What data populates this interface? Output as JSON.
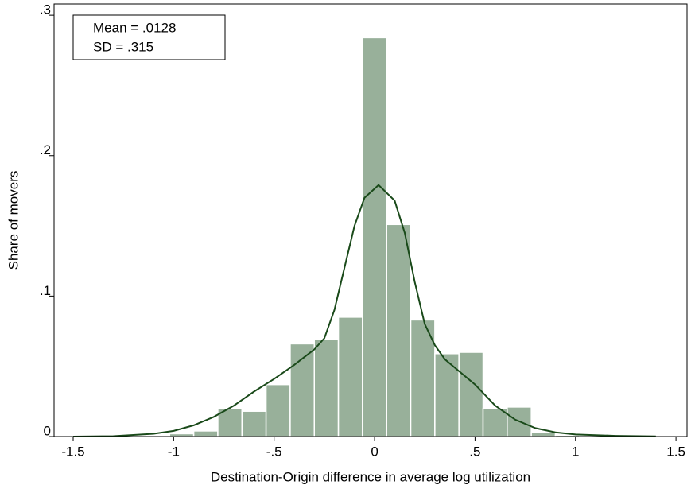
{
  "chart_data": {
    "type": "histogram",
    "x_label": "Destination-Origin difference in average log utilization",
    "y_label": "Share of movers",
    "annotations": [
      "Mean = .0128",
      "SD = .315"
    ],
    "bins": [
      -1.02,
      -0.9,
      -0.78,
      -0.66,
      -0.54,
      -0.42,
      -0.3,
      -0.18,
      -0.06,
      0.06,
      0.18,
      0.3,
      0.42,
      0.54,
      0.66,
      0.78,
      0.9,
      1.02
    ],
    "values": [
      0.002,
      0.004,
      0.02,
      0.018,
      0.037,
      0.066,
      0.069,
      0.085,
      0.284,
      0.151,
      0.083,
      0.059,
      0.06,
      0.02,
      0.021,
      0.003,
      0.001
    ],
    "color": "#98b09a",
    "density": {
      "color": "#1a4a1a",
      "x": [
        -1.5,
        -1.3,
        -1.1,
        -1.0,
        -0.9,
        -0.8,
        -0.7,
        -0.6,
        -0.5,
        -0.4,
        -0.3,
        -0.25,
        -0.2,
        -0.15,
        -0.1,
        -0.05,
        0.02,
        0.1,
        0.15,
        0.2,
        0.25,
        0.3,
        0.35,
        0.4,
        0.5,
        0.6,
        0.7,
        0.8,
        0.9,
        1.0,
        1.2,
        1.4
      ],
      "values": [
        0,
        0.0003,
        0.002,
        0.004,
        0.008,
        0.014,
        0.022,
        0.032,
        0.041,
        0.051,
        0.062,
        0.07,
        0.09,
        0.12,
        0.15,
        0.17,
        0.179,
        0.168,
        0.145,
        0.11,
        0.08,
        0.065,
        0.055,
        0.049,
        0.037,
        0.022,
        0.012,
        0.006,
        0.003,
        0.0015,
        0.0005,
        0.0001
      ]
    },
    "xlim": [
      -1.595,
      1.555
    ],
    "ylim": [
      0,
      0.308
    ],
    "xticks": [
      -1.5,
      -1,
      {
        "value": -0.5,
        "label": "-.5"
      },
      0,
      {
        "value": 0.5,
        "label": ".5"
      },
      1,
      1.5
    ],
    "yticks": [
      0,
      {
        "value": 0.1,
        "label": ".1"
      },
      {
        "value": 0.2,
        "label": ".2"
      },
      {
        "value": 0.3,
        "label": ".3"
      }
    ]
  }
}
